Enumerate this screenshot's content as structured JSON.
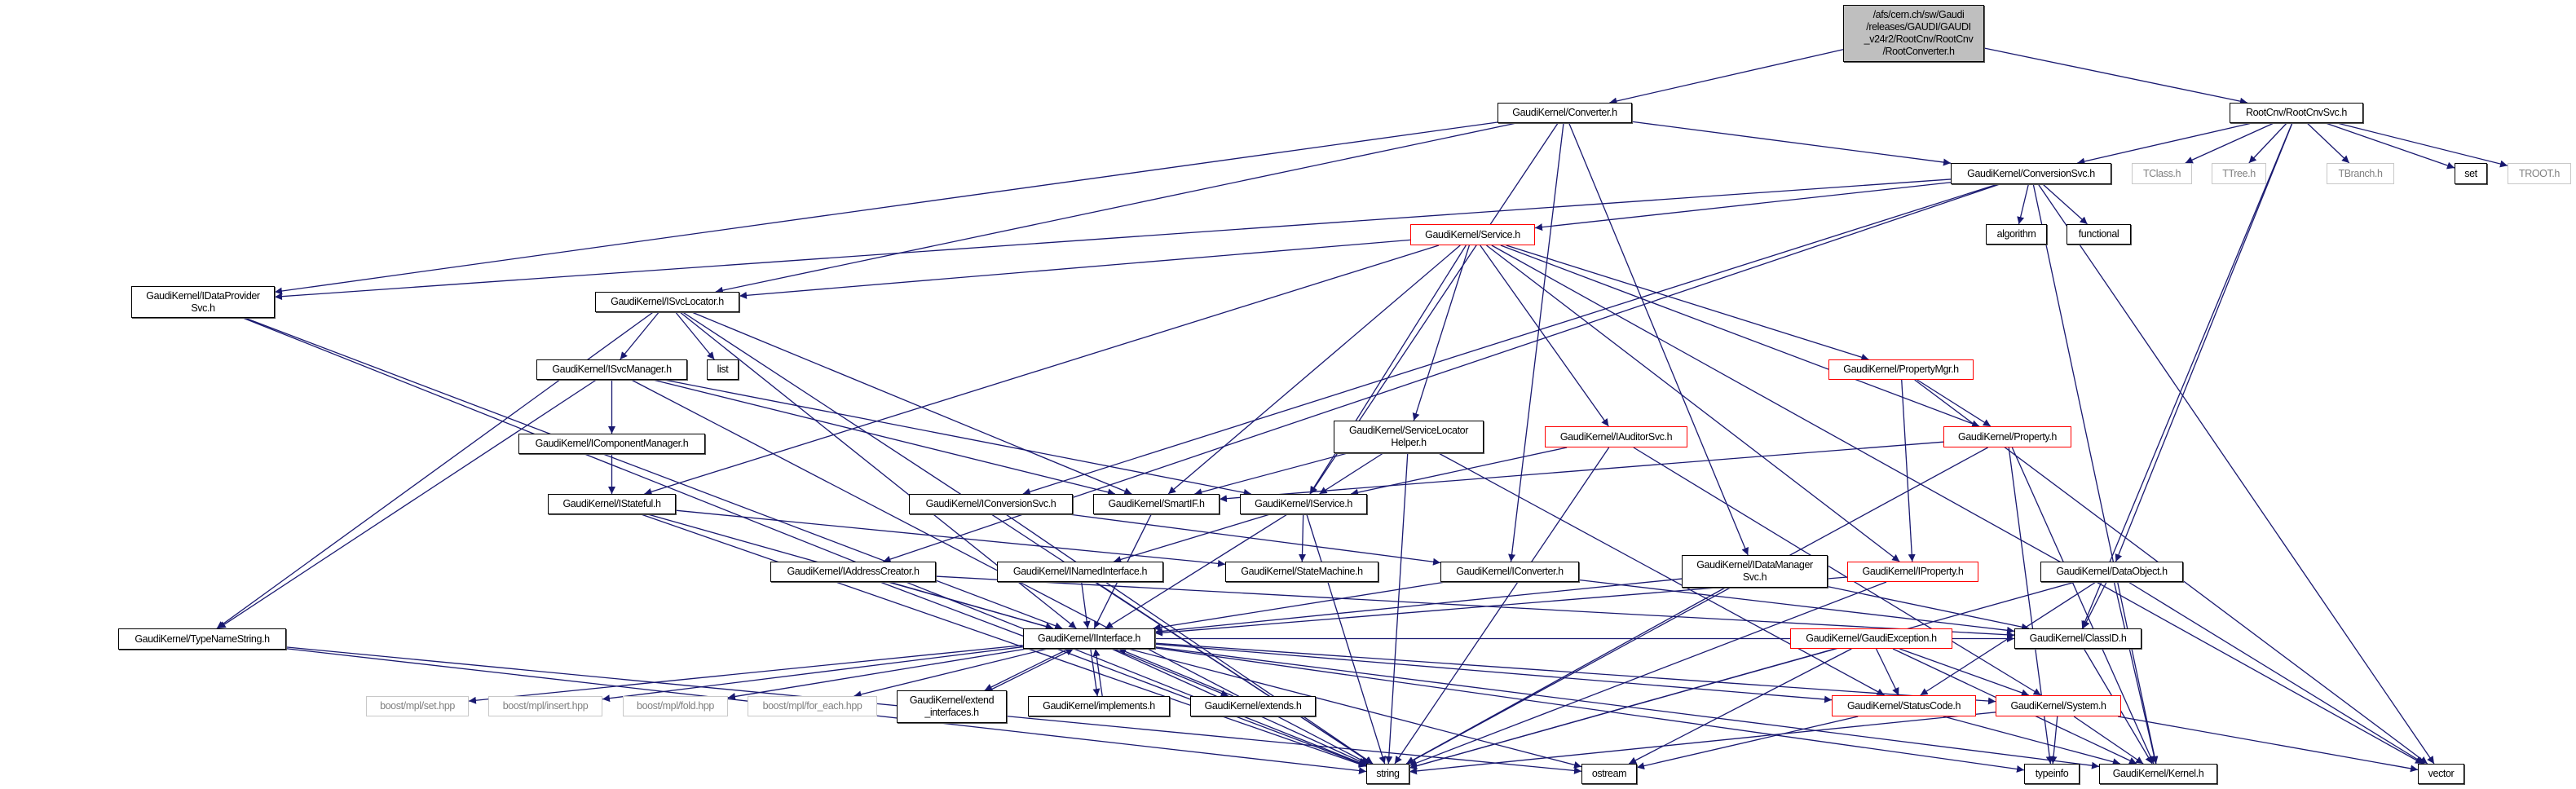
{
  "colors": {
    "edge": "#191970",
    "normal_border": "#000000",
    "truncated_border": "#ff0000",
    "external_border": "#c8c8c8",
    "root_fill": "#bfbfbf"
  },
  "nodes": [
    {
      "id": "root",
      "style": "root",
      "lines": [
        "/afs/cern.ch/sw/Gaudi",
        "/releases/GAUDI/GAUDI",
        "_v24r2/RootCnv/RootCnv",
        "/RootConverter.h"
      ]
    },
    {
      "id": "converter",
      "style": "normal",
      "lines": [
        "GaudiKernel/Converter.h"
      ]
    },
    {
      "id": "rootcnvsvc",
      "style": "normal",
      "lines": [
        "RootCnv/RootCnvSvc.h"
      ]
    },
    {
      "id": "conversionsvc",
      "style": "normal",
      "lines": [
        "GaudiKernel/ConversionSvc.h"
      ]
    },
    {
      "id": "tclass",
      "style": "gray",
      "lines": [
        "TClass.h"
      ]
    },
    {
      "id": "ttree",
      "style": "gray",
      "lines": [
        "TTree.h"
      ]
    },
    {
      "id": "tbranch",
      "style": "gray",
      "lines": [
        "TBranch.h"
      ]
    },
    {
      "id": "set",
      "style": "normal",
      "lines": [
        "set"
      ]
    },
    {
      "id": "troot",
      "style": "gray",
      "lines": [
        "TROOT.h"
      ]
    },
    {
      "id": "algorithm",
      "style": "normal",
      "lines": [
        "algorithm"
      ]
    },
    {
      "id": "functional",
      "style": "normal",
      "lines": [
        "functional"
      ]
    },
    {
      "id": "service",
      "style": "red",
      "lines": [
        "GaudiKernel/Service.h"
      ]
    },
    {
      "id": "idataprovidersvc",
      "style": "normal",
      "lines": [
        "GaudiKernel/IDataProvider",
        "Svc.h"
      ]
    },
    {
      "id": "isvclocator",
      "style": "normal",
      "lines": [
        "GaudiKernel/ISvcLocator.h"
      ]
    },
    {
      "id": "isvcmanager",
      "style": "normal",
      "lines": [
        "GaudiKernel/ISvcManager.h"
      ]
    },
    {
      "id": "list",
      "style": "normal",
      "lines": [
        "list"
      ]
    },
    {
      "id": "propertymgr",
      "style": "red",
      "lines": [
        "GaudiKernel/PropertyMgr.h"
      ]
    },
    {
      "id": "icomponentmanager",
      "style": "normal",
      "lines": [
        "GaudiKernel/IComponentManager.h"
      ]
    },
    {
      "id": "servicelocatorhelper",
      "style": "normal",
      "lines": [
        "GaudiKernel/ServiceLocator",
        "Helper.h"
      ]
    },
    {
      "id": "iauditorsvc",
      "style": "red",
      "lines": [
        "GaudiKernel/IAuditorSvc.h"
      ]
    },
    {
      "id": "property",
      "style": "red",
      "lines": [
        "GaudiKernel/Property.h"
      ]
    },
    {
      "id": "istateful",
      "style": "normal",
      "lines": [
        "GaudiKernel/IStateful.h"
      ]
    },
    {
      "id": "iconversionsvc",
      "style": "normal",
      "lines": [
        "GaudiKernel/IConversionSvc.h"
      ]
    },
    {
      "id": "smartif",
      "style": "normal",
      "lines": [
        "GaudiKernel/SmartIF.h"
      ]
    },
    {
      "id": "iservice",
      "style": "normal",
      "lines": [
        "GaudiKernel/IService.h"
      ]
    },
    {
      "id": "iaddresscreator",
      "style": "normal",
      "lines": [
        "GaudiKernel/IAddressCreator.h"
      ]
    },
    {
      "id": "inamedinterface",
      "style": "normal",
      "lines": [
        "GaudiKernel/INamedInterface.h"
      ]
    },
    {
      "id": "statemachine",
      "style": "normal",
      "lines": [
        "GaudiKernel/StateMachine.h"
      ]
    },
    {
      "id": "iconverter",
      "style": "normal",
      "lines": [
        "GaudiKernel/IConverter.h"
      ]
    },
    {
      "id": "idatamanagersvc",
      "style": "normal",
      "lines": [
        "GaudiKernel/IDataManager",
        "Svc.h"
      ]
    },
    {
      "id": "iproperty",
      "style": "red",
      "lines": [
        "GaudiKernel/IProperty.h"
      ]
    },
    {
      "id": "dataobject",
      "style": "normal",
      "lines": [
        "GaudiKernel/DataObject.h"
      ]
    },
    {
      "id": "typenamestring",
      "style": "normal",
      "lines": [
        "GaudiKernel/TypeNameString.h"
      ]
    },
    {
      "id": "iinterface",
      "style": "normal",
      "lines": [
        "GaudiKernel/IInterface.h"
      ]
    },
    {
      "id": "gaudiexception",
      "style": "red",
      "lines": [
        "GaudiKernel/GaudiException.h"
      ]
    },
    {
      "id": "classid",
      "style": "normal",
      "lines": [
        "GaudiKernel/ClassID.h"
      ]
    },
    {
      "id": "mplset",
      "style": "gray",
      "lines": [
        "boost/mpl/set.hpp"
      ]
    },
    {
      "id": "mplinsert",
      "style": "gray",
      "lines": [
        "boost/mpl/insert.hpp"
      ]
    },
    {
      "id": "mplfold",
      "style": "gray",
      "lines": [
        "boost/mpl/fold.hpp"
      ]
    },
    {
      "id": "mplforeach",
      "style": "gray",
      "lines": [
        "boost/mpl/for_each.hpp"
      ]
    },
    {
      "id": "extendinterfaces",
      "style": "normal",
      "lines": [
        "GaudiKernel/extend",
        "_interfaces.h"
      ]
    },
    {
      "id": "implements",
      "style": "normal",
      "lines": [
        "GaudiKernel/implements.h"
      ]
    },
    {
      "id": "extends",
      "style": "normal",
      "lines": [
        "GaudiKernel/extends.h"
      ]
    },
    {
      "id": "statuscode",
      "style": "red",
      "lines": [
        "GaudiKernel/StatusCode.h"
      ]
    },
    {
      "id": "system",
      "style": "red",
      "lines": [
        "GaudiKernel/System.h"
      ]
    },
    {
      "id": "string",
      "style": "normal",
      "lines": [
        "string"
      ]
    },
    {
      "id": "ostream",
      "style": "normal",
      "lines": [
        "ostream"
      ]
    },
    {
      "id": "typeinfo",
      "style": "normal",
      "lines": [
        "typeinfo"
      ]
    },
    {
      "id": "kernel",
      "style": "normal",
      "lines": [
        "GaudiKernel/Kernel.h"
      ]
    },
    {
      "id": "vector",
      "style": "normal",
      "lines": [
        "vector"
      ]
    }
  ],
  "edges": [
    [
      "root",
      "converter"
    ],
    [
      "root",
      "rootcnvsvc"
    ],
    [
      "rootcnvsvc",
      "conversionsvc"
    ],
    [
      "rootcnvsvc",
      "tclass"
    ],
    [
      "rootcnvsvc",
      "ttree"
    ],
    [
      "rootcnvsvc",
      "tbranch"
    ],
    [
      "rootcnvsvc",
      "set"
    ],
    [
      "rootcnvsvc",
      "troot"
    ],
    [
      "rootcnvsvc",
      "dataobject"
    ],
    [
      "rootcnvsvc",
      "classid"
    ],
    [
      "converter",
      "idataprovidersvc"
    ],
    [
      "converter",
      "isvclocator"
    ],
    [
      "converter",
      "conversionsvc"
    ],
    [
      "converter",
      "iservice"
    ],
    [
      "converter",
      "iconverter"
    ],
    [
      "converter",
      "idatamanagersvc"
    ],
    [
      "conversionsvc",
      "service"
    ],
    [
      "conversionsvc",
      "algorithm"
    ],
    [
      "conversionsvc",
      "functional"
    ],
    [
      "conversionsvc",
      "idataprovidersvc"
    ],
    [
      "conversionsvc",
      "iconversionsvc"
    ],
    [
      "conversionsvc",
      "iaddresscreator"
    ],
    [
      "conversionsvc",
      "kernel"
    ],
    [
      "conversionsvc",
      "vector"
    ],
    [
      "service",
      "isvclocator"
    ],
    [
      "service",
      "istateful"
    ],
    [
      "service",
      "smartif"
    ],
    [
      "service",
      "iservice"
    ],
    [
      "service",
      "servicelocatorhelper"
    ],
    [
      "service",
      "iauditorsvc"
    ],
    [
      "service",
      "propertymgr"
    ],
    [
      "service",
      "property"
    ],
    [
      "service",
      "iproperty"
    ],
    [
      "service",
      "vector"
    ],
    [
      "idataprovidersvc",
      "string"
    ],
    [
      "idataprovidersvc",
      "iinterface"
    ],
    [
      "isvclocator",
      "isvcmanager"
    ],
    [
      "isvclocator",
      "list"
    ],
    [
      "isvclocator",
      "smartif"
    ],
    [
      "isvclocator",
      "iinterface"
    ],
    [
      "isvclocator",
      "string"
    ],
    [
      "isvclocator",
      "typenamestring"
    ],
    [
      "isvcmanager",
      "icomponentmanager"
    ],
    [
      "isvcmanager",
      "typenamestring"
    ],
    [
      "isvcmanager",
      "string"
    ],
    [
      "isvcmanager",
      "iservice"
    ],
    [
      "isvcmanager",
      "smartif"
    ],
    [
      "icomponentmanager",
      "istateful"
    ],
    [
      "istateful",
      "iinterface"
    ],
    [
      "istateful",
      "statemachine"
    ],
    [
      "istateful",
      "string"
    ],
    [
      "servicelocatorhelper",
      "smartif"
    ],
    [
      "servicelocatorhelper",
      "iservice"
    ],
    [
      "servicelocatorhelper",
      "string"
    ],
    [
      "servicelocatorhelper",
      "statuscode"
    ],
    [
      "iauditorsvc",
      "iservice"
    ],
    [
      "iauditorsvc",
      "string"
    ],
    [
      "iauditorsvc",
      "system"
    ],
    [
      "propertymgr",
      "property"
    ],
    [
      "propertymgr",
      "iproperty"
    ],
    [
      "propertymgr",
      "vector"
    ],
    [
      "property",
      "smartif"
    ],
    [
      "property",
      "string"
    ],
    [
      "property",
      "kernel"
    ],
    [
      "property",
      "typeinfo"
    ],
    [
      "iconversionsvc",
      "iconverter"
    ],
    [
      "iconversionsvc",
      "string"
    ],
    [
      "smartif",
      "iinterface"
    ],
    [
      "iservice",
      "inamedinterface"
    ],
    [
      "iservice",
      "statemachine"
    ],
    [
      "iservice",
      "iinterface"
    ],
    [
      "iservice",
      "string"
    ],
    [
      "iaddresscreator",
      "iinterface"
    ],
    [
      "iaddresscreator",
      "classid"
    ],
    [
      "iaddresscreator",
      "string"
    ],
    [
      "inamedinterface",
      "iinterface"
    ],
    [
      "inamedinterface",
      "string"
    ],
    [
      "iconverter",
      "iinterface"
    ],
    [
      "iconverter",
      "classid"
    ],
    [
      "idatamanagersvc",
      "iinterface"
    ],
    [
      "idatamanagersvc",
      "classid"
    ],
    [
      "idatamanagersvc",
      "string"
    ],
    [
      "iproperty",
      "iinterface"
    ],
    [
      "iproperty",
      "string"
    ],
    [
      "dataobject",
      "classid"
    ],
    [
      "dataobject",
      "statuscode"
    ],
    [
      "dataobject",
      "kernel"
    ],
    [
      "dataobject",
      "string"
    ],
    [
      "dataobject",
      "vector"
    ],
    [
      "typenamestring",
      "string"
    ],
    [
      "typenamestring",
      "ostream"
    ],
    [
      "iinterface",
      "mplset"
    ],
    [
      "iinterface",
      "mplinsert"
    ],
    [
      "iinterface",
      "mplfold"
    ],
    [
      "iinterface",
      "mplforeach"
    ],
    [
      "iinterface",
      "extendinterfaces"
    ],
    [
      "iinterface",
      "implements"
    ],
    [
      "iinterface",
      "extends"
    ],
    [
      "iinterface",
      "statuscode"
    ],
    [
      "iinterface",
      "system"
    ],
    [
      "iinterface",
      "ostream"
    ],
    [
      "iinterface",
      "string"
    ],
    [
      "iinterface",
      "typeinfo"
    ],
    [
      "iinterface",
      "kernel"
    ],
    [
      "iinterface",
      "classid"
    ],
    [
      "extendinterfaces",
      "iinterface"
    ],
    [
      "implements",
      "iinterface"
    ],
    [
      "extends",
      "iinterface"
    ],
    [
      "gaudiexception",
      "statuscode"
    ],
    [
      "gaudiexception",
      "system"
    ],
    [
      "gaudiexception",
      "string"
    ],
    [
      "gaudiexception",
      "ostream"
    ],
    [
      "gaudiexception",
      "kernel"
    ],
    [
      "statuscode",
      "ostream"
    ],
    [
      "statuscode",
      "kernel"
    ],
    [
      "system",
      "typeinfo"
    ],
    [
      "system",
      "kernel"
    ],
    [
      "system",
      "vector"
    ],
    [
      "system",
      "string"
    ],
    [
      "classid",
      "kernel"
    ]
  ]
}
